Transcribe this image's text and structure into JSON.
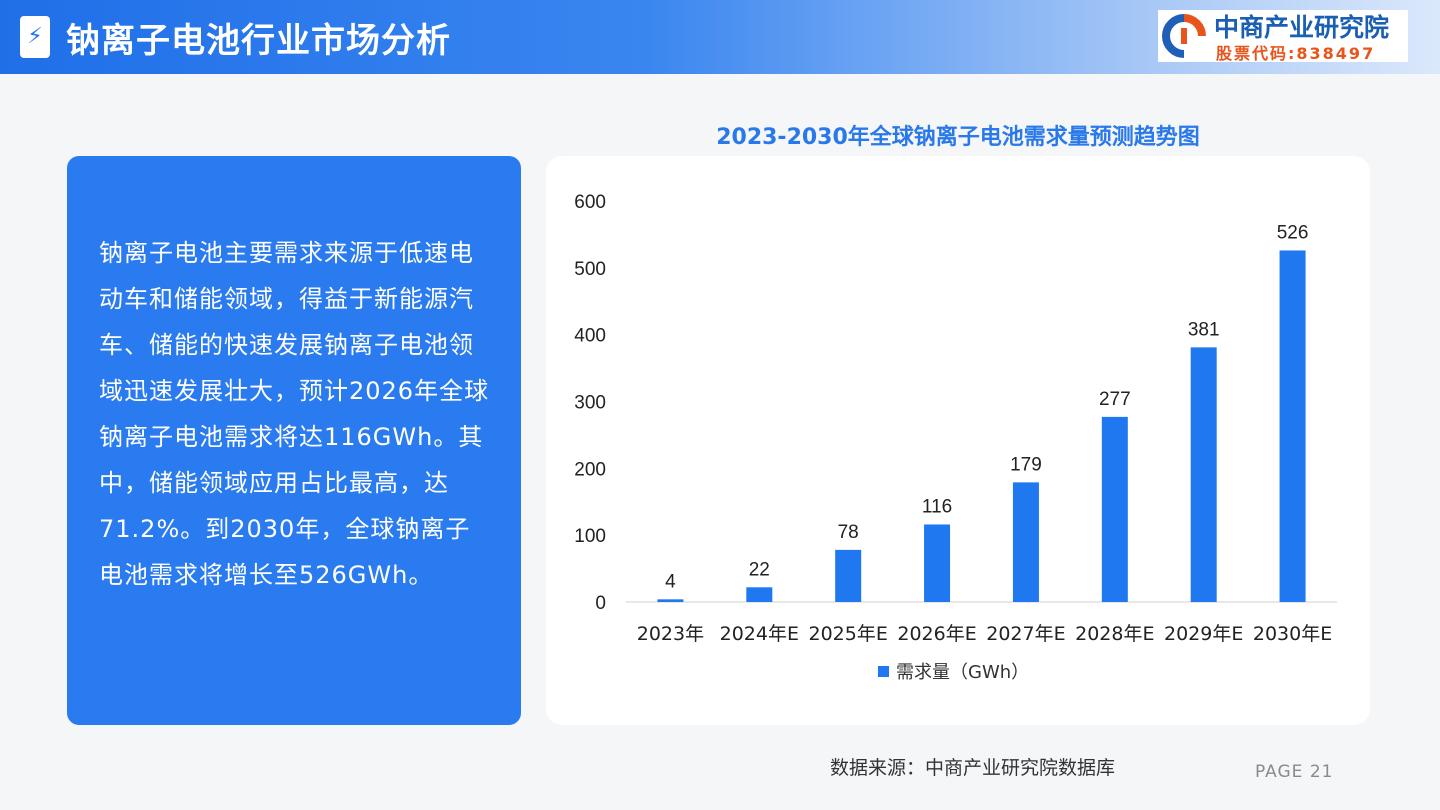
{
  "header": {
    "title": "钠离子电池行业市场分析",
    "logo_name": "中商产业研究院",
    "logo_stock": "股票代码:838497"
  },
  "left_panel": {
    "text": "钠离子电池主要需求来源于低速电动车和储能领域，得益于新能源汽车、储能的快速发展钠离子电池领域迅速发展壮大，预计2026年全球钠离子电池需求将达116GWh。其中，储能领域应用占比最高，达71.2%。到2030年，全球钠离子电池需求将增长至526GWh。"
  },
  "chart_data": {
    "type": "bar",
    "title": "2023-2030年全球钠离子电池需求量预测趋势图",
    "categories": [
      "2023年",
      "2024年E",
      "2025年E",
      "2026年E",
      "2027年E",
      "2028年E",
      "2029年E",
      "2030年E"
    ],
    "series": [
      {
        "name": "需求量（GWh）",
        "values": [
          4,
          22,
          78,
          116,
          179,
          277,
          381,
          526
        ]
      }
    ],
    "y_ticks": [
      "0",
      "100",
      "200",
      "300",
      "400",
      "500",
      "600"
    ],
    "ylim": [
      0,
      600
    ],
    "grid": false,
    "legend": "bottom",
    "bar_color": "#1f78f0"
  },
  "footer": {
    "source": "数据来源：中商产业研究院数据库",
    "page": "PAGE 21"
  },
  "colors": {
    "header_blue": "#1f6fe8",
    "panel_blue": "#2b7bf0",
    "accent_blue": "#2a79ea",
    "logo_orange": "#e8541b"
  }
}
